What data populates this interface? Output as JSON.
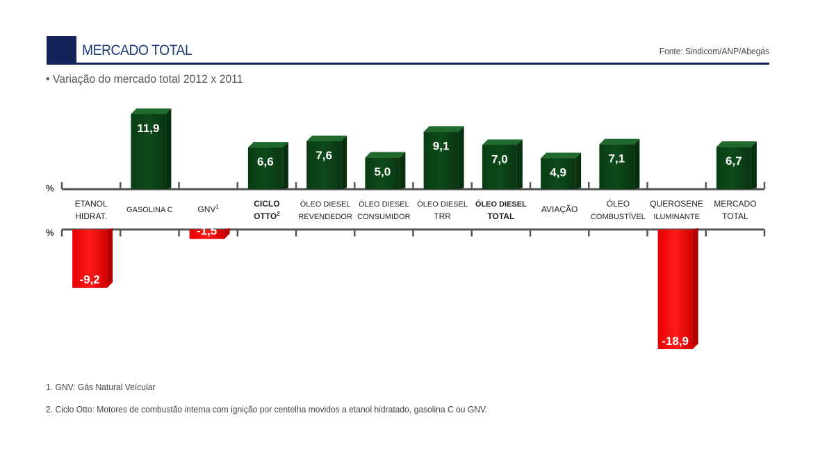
{
  "header": {
    "title": "MERCADO TOTAL",
    "source": "Fonte: Sindicom/ANP/Abegás"
  },
  "subtitle": "• Variação do mercado total 2012 x 2011",
  "colors": {
    "positive": "#0d4a1a",
    "negative": "#e00000",
    "axis": "#555555",
    "brand": "#14245a"
  },
  "chart_data": {
    "type": "bar",
    "unit_label": "%",
    "categories": [
      {
        "lines": [
          "ETANOL",
          "HIDRAT."
        ],
        "sup": "",
        "bold": false
      },
      {
        "lines": [
          "GASOLINA C"
        ],
        "sup": "",
        "bold": false
      },
      {
        "lines": [
          "GNV"
        ],
        "sup": "1",
        "bold": false
      },
      {
        "lines": [
          "CICLO",
          "OTTO"
        ],
        "sup": "2",
        "bold": true
      },
      {
        "lines": [
          "ÓLEO DIESEL",
          "REVENDEDOR"
        ],
        "sup": "",
        "bold": false
      },
      {
        "lines": [
          "ÓLEO DIESEL",
          "CONSUMIDOR"
        ],
        "sup": "",
        "bold": false
      },
      {
        "lines": [
          "ÓLEO DIESEL",
          "TRR"
        ],
        "sup": "",
        "bold": false
      },
      {
        "lines": [
          "ÓLEO DIESEL",
          "TOTAL"
        ],
        "sup": "",
        "bold": true
      },
      {
        "lines": [
          "AVIAÇÃO"
        ],
        "sup": "",
        "bold": false
      },
      {
        "lines": [
          "ÓLEO",
          "COMBUSTÍVEL"
        ],
        "sup": "",
        "bold": false
      },
      {
        "lines": [
          "QUEROSENE",
          "ILUMINANTE"
        ],
        "sup": "",
        "bold": false
      },
      {
        "lines": [
          "MERCADO",
          "TOTAL"
        ],
        "sup": "",
        "bold": false
      }
    ],
    "values": [
      -9.2,
      11.9,
      -1.5,
      6.6,
      7.6,
      5.0,
      9.1,
      7.0,
      4.9,
      7.1,
      -18.9,
      6.7
    ],
    "labels": [
      "-9,2",
      "11,9",
      "-1,5",
      "6,6",
      "7,6",
      "5,0",
      "9,1",
      "7,0",
      "4,9",
      "7,1",
      "-18,9",
      "6,7"
    ]
  },
  "notes": [
    "1. GNV: Gás Natural Veícular",
    "2. Ciclo Otto: Motores de combustão interna com ignição por centelha movidos a etanol hidratado, gasolina C ou GNV."
  ]
}
